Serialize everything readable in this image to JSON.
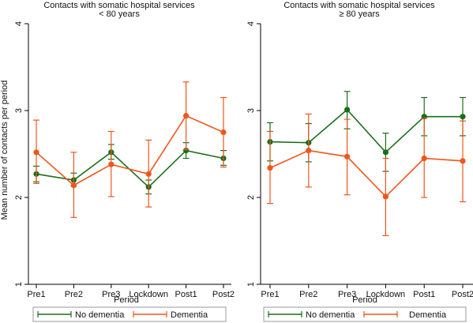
{
  "y_axis_label": "Mean number of contacts per period",
  "colors": {
    "no_dementia": "#1a6e1a",
    "dementia": "#f0561c",
    "axis": "#000000",
    "legend_border": "#999999"
  },
  "chart_data": [
    {
      "type": "line",
      "title": "Contacts with somatic hospital services",
      "subtitle": "< 80 years",
      "xlabel": "Period",
      "ylabel": "Mean number of contacts per period",
      "categories": [
        "Pre1",
        "Pre2",
        "Pre3",
        "Lockdown",
        "Post1",
        "Post2"
      ],
      "ylim": [
        1,
        4
      ],
      "yticks": [
        "1",
        "2",
        "3",
        "4"
      ],
      "grid": false,
      "legend_position": "bottom",
      "series": [
        {
          "name": "No dementia",
          "values": [
            2.27,
            2.2,
            2.52,
            2.12,
            2.54,
            2.45
          ],
          "ci_low": [
            2.18,
            2.13,
            2.44,
            2.04,
            2.45,
            2.37
          ],
          "ci_high": [
            2.36,
            2.28,
            2.61,
            2.2,
            2.63,
            2.54
          ]
        },
        {
          "name": "Dementia",
          "values": [
            2.52,
            2.14,
            2.38,
            2.27,
            2.94,
            2.75
          ],
          "ci_low": [
            2.16,
            1.77,
            2.01,
            1.89,
            2.55,
            2.35
          ],
          "ci_high": [
            2.89,
            2.52,
            2.76,
            2.66,
            3.33,
            3.15
          ]
        }
      ]
    },
    {
      "type": "line",
      "title": "Contacts with somatic hospital services",
      "subtitle": "≥ 80 years",
      "xlabel": "Period",
      "ylabel": "",
      "categories": [
        "Pre1",
        "Pre2",
        "Pre3",
        "Lockdown",
        "Post1",
        "Post2"
      ],
      "ylim": [
        1,
        4
      ],
      "yticks": [
        "1",
        "2",
        "3",
        "4"
      ],
      "grid": false,
      "legend_position": "bottom",
      "series": [
        {
          "name": "No dementia",
          "values": [
            2.64,
            2.63,
            3.01,
            2.52,
            2.93,
            2.93
          ],
          "ci_low": [
            2.42,
            2.41,
            2.79,
            2.3,
            2.71,
            2.71
          ],
          "ci_high": [
            2.86,
            2.85,
            3.22,
            2.74,
            3.15,
            3.15
          ]
        },
        {
          "name": "Dementia",
          "values": [
            2.34,
            2.54,
            2.47,
            2.01,
            2.45,
            2.42
          ],
          "ci_low": [
            1.93,
            2.12,
            2.03,
            1.56,
            2.0,
            1.95
          ],
          "ci_high": [
            2.76,
            2.96,
            2.9,
            2.45,
            2.91,
            2.88
          ]
        }
      ]
    }
  ]
}
